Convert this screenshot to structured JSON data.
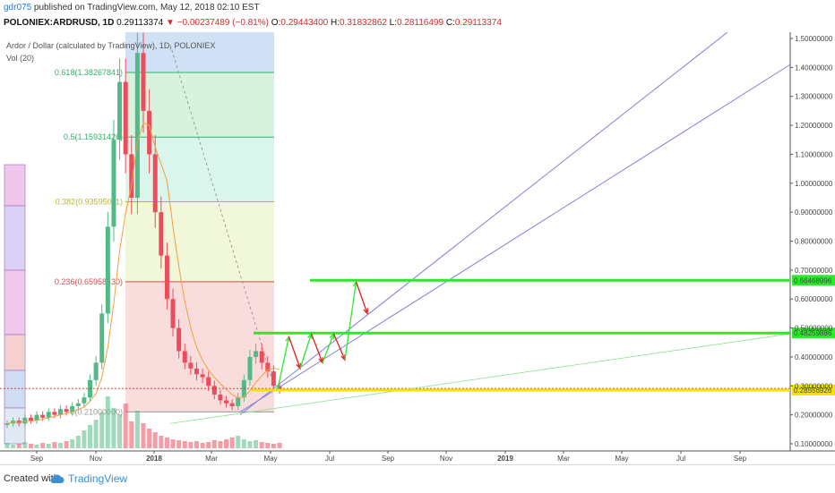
{
  "header": {
    "user": "gdr075",
    "published": "published on TradingView.com, May 12, 2018 02:10 EST",
    "symbol": "POLONIEX:ARDRUSD, 1D",
    "last": "0.29113374",
    "change": "−0.00237489 (−0.81%)",
    "o_label": "O:",
    "o_val": "0.29443400",
    "h_label": "H:",
    "h_val": "0.31832862",
    "l_label": "L:",
    "l_val": "0.28116499",
    "c_label": "C:",
    "c_val": "0.29113374"
  },
  "footer": {
    "created": "Created with",
    "brand": "TradingView"
  },
  "colors": {
    "up": "#53b987",
    "down": "#eb4d5c",
    "fib_green": "#2fb36a",
    "fib_olive": "#b8b82a",
    "fib_red": "#d94b4b",
    "trend": "#8080e0",
    "hline": "#2ee82e",
    "support": "#f2e200"
  },
  "chart_data": {
    "type": "candlestick",
    "title": "Ardor / Dollar (calculated by TradingView), 1D, POLONIEX",
    "indicator": "Vol (20)",
    "x_ticks": [
      "Sep",
      "Nov",
      "2018",
      "Mar",
      "May",
      "Jul",
      "Sep",
      "Nov",
      "2019",
      "Mar",
      "May",
      "Jul",
      "Sep"
    ],
    "y_ticks": [
      "1.50000000",
      "1.40000000",
      "1.30000000",
      "1.20000000",
      "1.10000000",
      "1.00000000",
      "0.90000000",
      "0.80000000",
      "0.70000000",
      "0.60000000",
      "0.50000000",
      "0.40000000",
      "0.30000000",
      "0.20000000",
      "0.10000000"
    ],
    "ylim": [
      0.1,
      1.5
    ],
    "fib_levels": [
      {
        "label": "0.618(1.38267841)",
        "value": 1.38267841
      },
      {
        "label": "0.5(1.15931426)",
        "value": 1.15931426
      },
      {
        "label": "0.382(0.93595011)",
        "value": 0.93595011
      },
      {
        "label": "0.236(0.65958430)",
        "value": 0.6595843
      },
      {
        "label": "0(0.21000000)",
        "value": 0.21
      }
    ],
    "price_lines": [
      {
        "label": "0.66468996",
        "value": 0.66468996
      },
      {
        "label": "0.48259886",
        "value": 0.48259886
      },
      {
        "label": "0.28556926",
        "value": 0.28556926
      }
    ],
    "close_approx": [
      0.17,
      0.18,
      0.17,
      0.19,
      0.18,
      0.2,
      0.19,
      0.21,
      0.2,
      0.22,
      0.21,
      0.23,
      0.24,
      0.26,
      0.32,
      0.38,
      0.55,
      0.85,
      1.15,
      1.35,
      1.1,
      0.95,
      1.45,
      1.25,
      1.1,
      0.9,
      0.75,
      0.6,
      0.5,
      0.42,
      0.38,
      0.36,
      0.34,
      0.33,
      0.3,
      0.27,
      0.25,
      0.24,
      0.23,
      0.26,
      0.32,
      0.4,
      0.42,
      0.38,
      0.35,
      0.3,
      0.29
    ],
    "projection": [
      0.29,
      0.47,
      0.36,
      0.48,
      0.38,
      0.48,
      0.39,
      0.66,
      0.55
    ]
  }
}
